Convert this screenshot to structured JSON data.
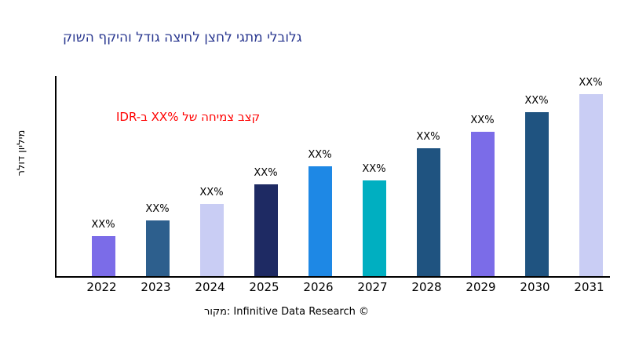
{
  "chart_data": {
    "type": "bar",
    "title": "קושה ףקיהו לדוג הציחל ןצחל יגתמ ילבולג",
    "title_color": "#2a3890",
    "ylabel": "רלוד ןוילימ",
    "xlabel": "",
    "categories": [
      "2022",
      "2023",
      "2024",
      "2025",
      "2026",
      "2027",
      "2028",
      "2029",
      "2030",
      "2031"
    ],
    "values": [
      20,
      28,
      36,
      46,
      55,
      48,
      64,
      72,
      82,
      91
    ],
    "bar_labels": [
      "XX%",
      "XX%",
      "XX%",
      "XX%",
      "XX%",
      "XX%",
      "XX%",
      "XX%",
      "XX%",
      "XX%"
    ],
    "bar_colors": [
      "#7b6ce8",
      "#2d5f8d",
      "#c9cdf4",
      "#1e2a63",
      "#1e88e5",
      "#00afc1",
      "#1f5380",
      "#7b6ce8",
      "#1f5380",
      "#c9cdf4"
    ],
    "ylim": [
      0,
      100
    ],
    "grid": false,
    "legend": "none",
    "axis_color": "#000000",
    "annotation": {
      "text": "IDR-ב XX% לש החימצ בצק",
      "color": "#ff0000"
    },
    "source": "רוקמ: Infinitive Data Research ©"
  }
}
